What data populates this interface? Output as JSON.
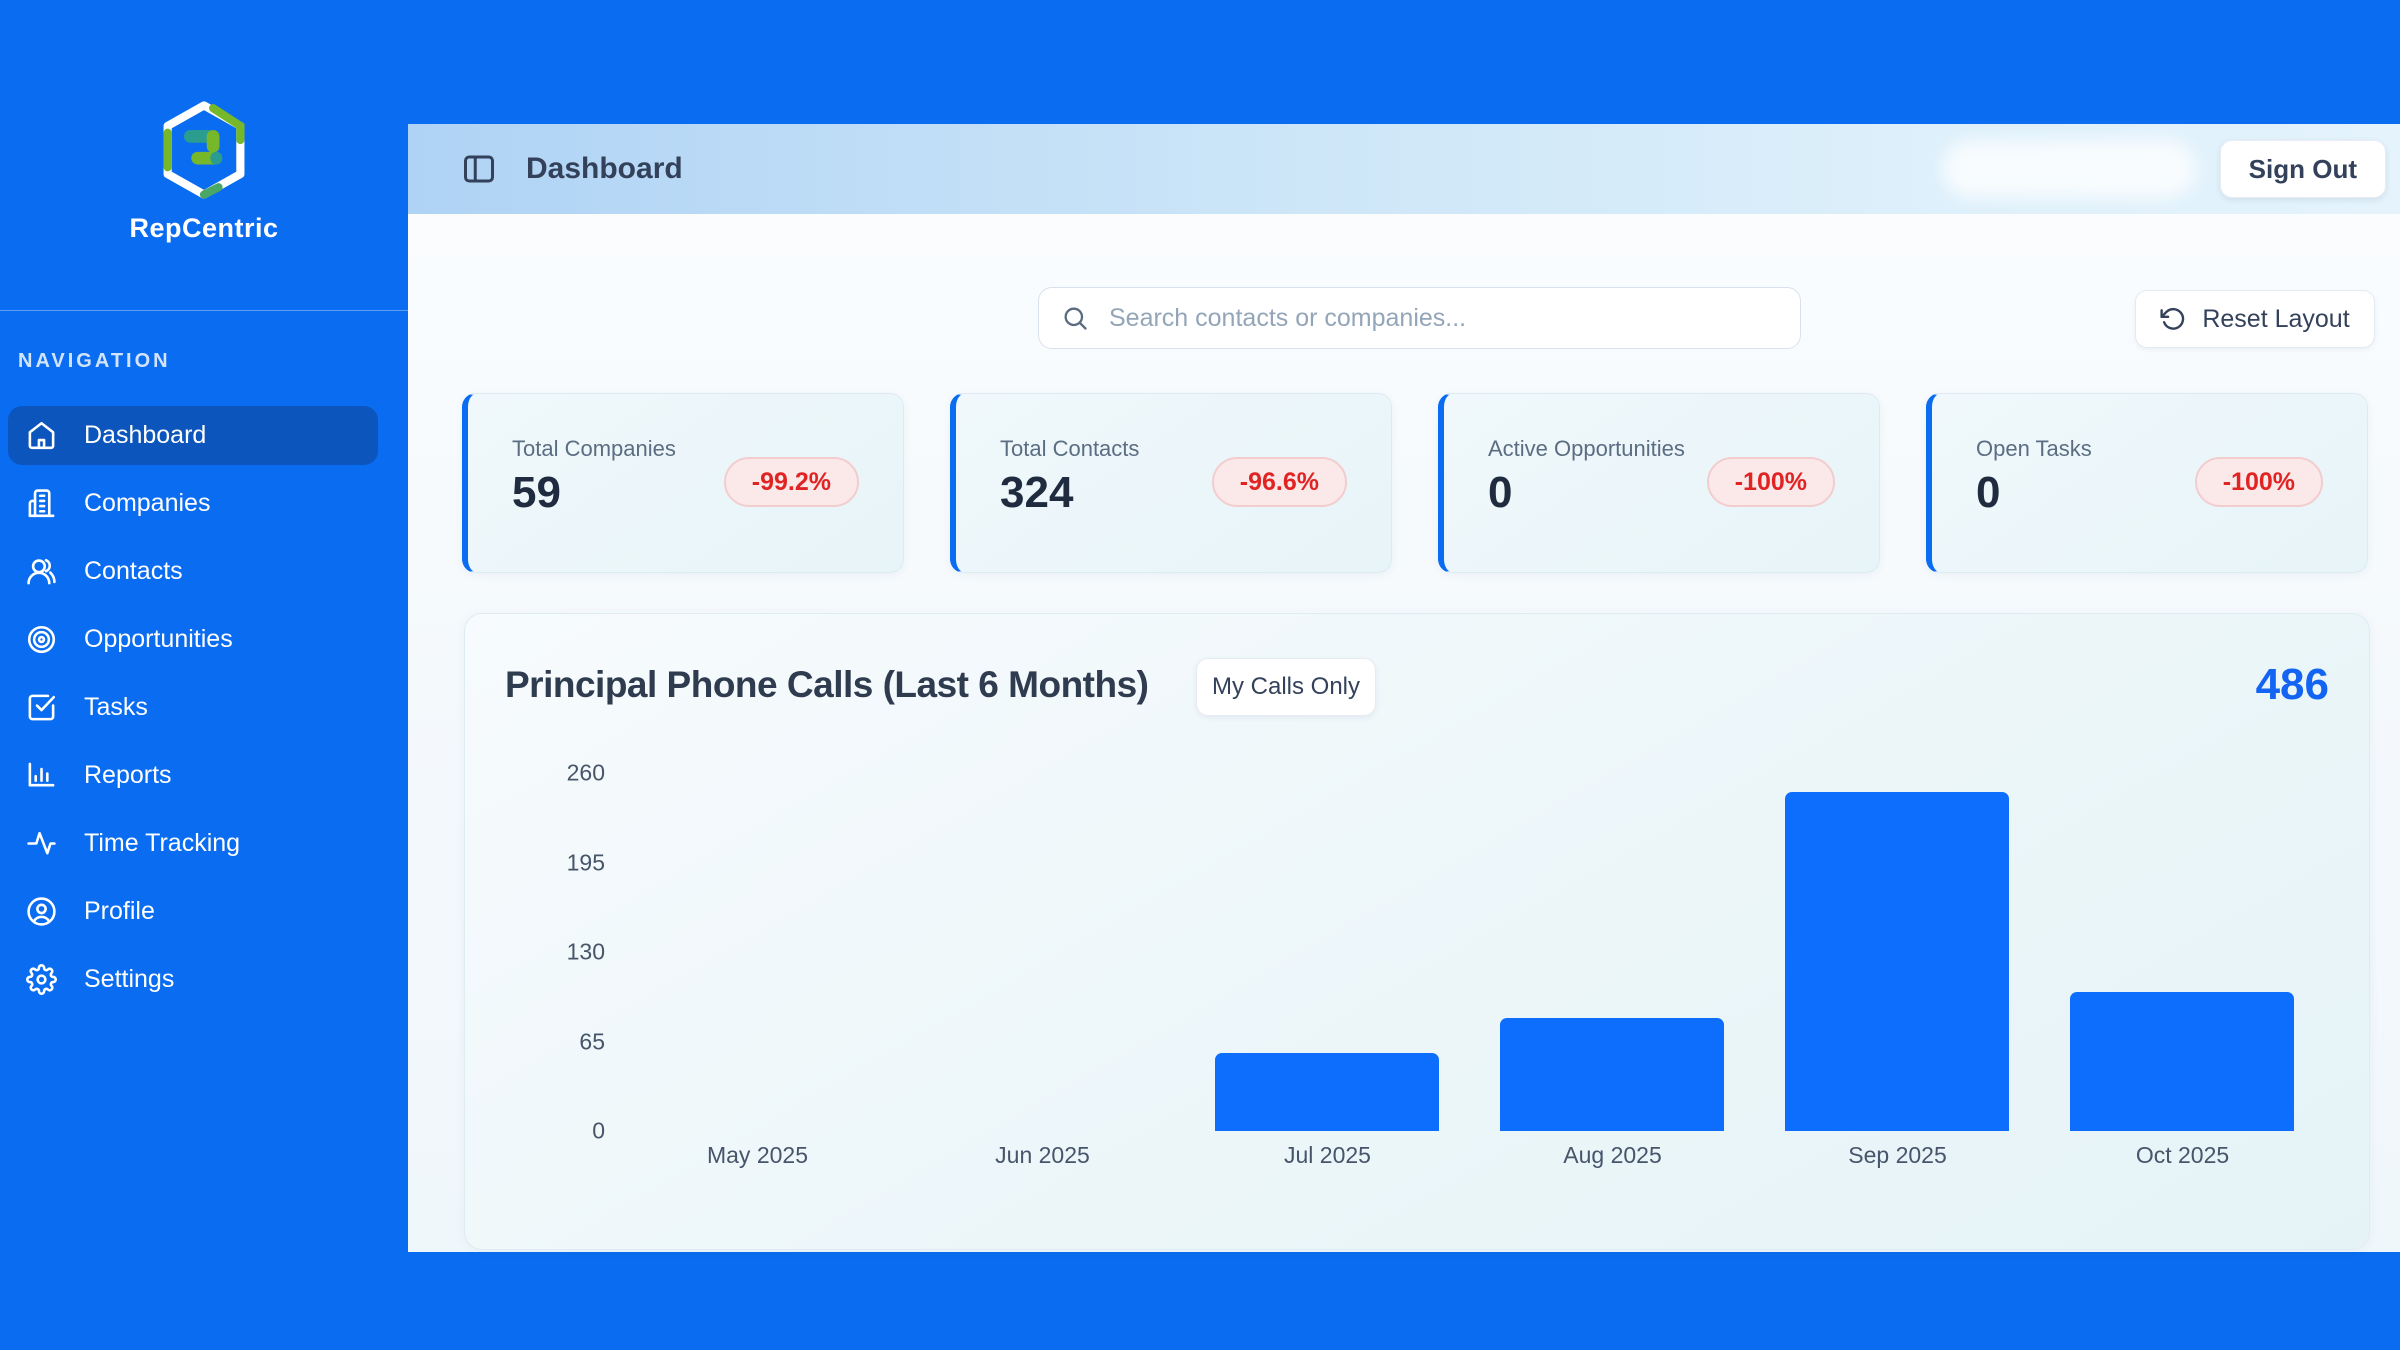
{
  "app": {
    "name": "RepCentric",
    "logo_icon": "hexagon-swap-logo"
  },
  "colors": {
    "background_blue": "#0a6cf0",
    "active_nav_blue": "#0b55bd",
    "bar_blue": "#0d6efd",
    "accent_blue_text": "#1464f4",
    "badge_red_text": "#e02424",
    "badge_red_bg": "#fbe9e9",
    "logo_teal": "#2a9d8f",
    "logo_green": "#76b82a"
  },
  "sidebar": {
    "section_label": "NAVIGATION",
    "items": [
      {
        "label": "Dashboard",
        "icon": "home-icon",
        "active": true
      },
      {
        "label": "Companies",
        "icon": "building-icon",
        "active": false
      },
      {
        "label": "Contacts",
        "icon": "users-icon",
        "active": false
      },
      {
        "label": "Opportunities",
        "icon": "target-icon",
        "active": false
      },
      {
        "label": "Tasks",
        "icon": "check-square-icon",
        "active": false
      },
      {
        "label": "Reports",
        "icon": "bar-chart-icon",
        "active": false
      },
      {
        "label": "Time Tracking",
        "icon": "activity-icon",
        "active": false
      },
      {
        "label": "Profile",
        "icon": "user-circle-icon",
        "active": false
      },
      {
        "label": "Settings",
        "icon": "gear-icon",
        "active": false
      }
    ]
  },
  "header": {
    "title": "Dashboard",
    "toggle_icon": "panel-left-icon",
    "sign_out_label": "Sign Out",
    "redacted_user_chip": true
  },
  "toolbar": {
    "search_placeholder": "Search contacts or companies...",
    "search_icon": "search-icon",
    "reset_icon": "rotate-ccw-icon",
    "reset_layout_label": "Reset Layout"
  },
  "stats": [
    {
      "label": "Total Companies",
      "value": "59",
      "change": "-99.2%"
    },
    {
      "label": "Total Contacts",
      "value": "324",
      "change": "-96.6%"
    },
    {
      "label": "Active Opportunities",
      "value": "0",
      "change": "-100%"
    },
    {
      "label": "Open Tasks",
      "value": "0",
      "change": "-100%"
    }
  ],
  "chart_data": {
    "type": "bar",
    "title": "Principal Phone Calls (Last 6 Months)",
    "filter_button_label": "My Calls Only",
    "total_label": "486",
    "categories": [
      "May 2025",
      "Jun 2025",
      "Jul 2025",
      "Aug 2025",
      "Sep 2025",
      "Oct 2025"
    ],
    "values": [
      0,
      0,
      57,
      82,
      246,
      101
    ],
    "y_ticks": [
      260,
      195,
      130,
      65,
      0
    ],
    "ylim": [
      0,
      260
    ],
    "xlabel": "",
    "ylabel": "",
    "grid": false,
    "legend": false,
    "bar_color": "#0d6efd"
  }
}
